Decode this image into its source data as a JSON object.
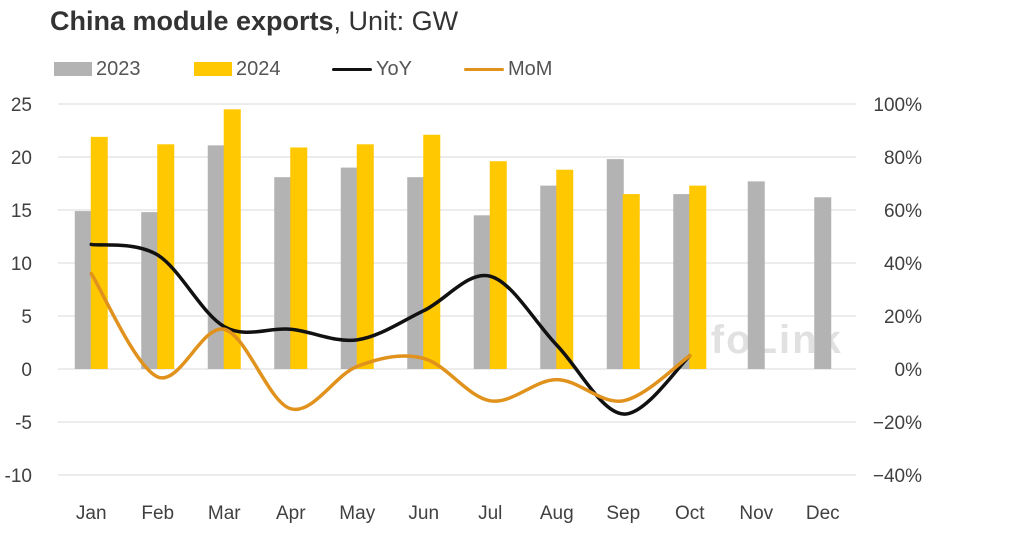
{
  "title": {
    "bold": "China module exports",
    "rest": ", Unit: GW"
  },
  "colors": {
    "s2023": "#b3b3b3",
    "s2024": "#ffc800",
    "yoy": "#111111",
    "mom": "#e0921c",
    "grid": "#d9d9d9",
    "watermark": "#c8c8c8"
  },
  "watermark": "InfoLink",
  "chart_data": {
    "type": "bar",
    "categories": [
      "Jan",
      "Feb",
      "Mar",
      "Apr",
      "May",
      "Jun",
      "Jul",
      "Aug",
      "Sep",
      "Oct",
      "Nov",
      "Dec"
    ],
    "series": [
      {
        "name": "2023",
        "type": "bar",
        "axis": "left",
        "values": [
          14.9,
          14.8,
          21.1,
          18.1,
          19.0,
          18.1,
          14.5,
          17.3,
          19.8,
          16.5,
          17.7,
          16.2
        ]
      },
      {
        "name": "2024",
        "type": "bar",
        "axis": "left",
        "values": [
          21.9,
          21.2,
          24.5,
          20.9,
          21.2,
          22.1,
          19.6,
          18.8,
          16.5,
          17.3,
          null,
          null
        ]
      },
      {
        "name": "YoY",
        "type": "line",
        "axis": "right",
        "unit": "%",
        "values": [
          47,
          43,
          16,
          15,
          11,
          22,
          35,
          9,
          -17,
          5,
          null,
          null
        ]
      },
      {
        "name": "MoM",
        "type": "line",
        "axis": "right",
        "unit": "%",
        "values": [
          36,
          -3,
          15,
          -15,
          1,
          4,
          -12,
          -4,
          -12,
          5,
          null,
          null
        ]
      }
    ],
    "y_left": {
      "min": -10,
      "max": 25,
      "ticks": [
        25,
        20,
        15,
        10,
        5,
        0,
        -5,
        -10
      ]
    },
    "y_right": {
      "min": -40,
      "max": 100,
      "ticks": [
        "100%",
        "80%",
        "60%",
        "40%",
        "20%",
        "0%",
        "−20%",
        "−40%"
      ]
    },
    "grid": true,
    "legend": "top-left"
  }
}
